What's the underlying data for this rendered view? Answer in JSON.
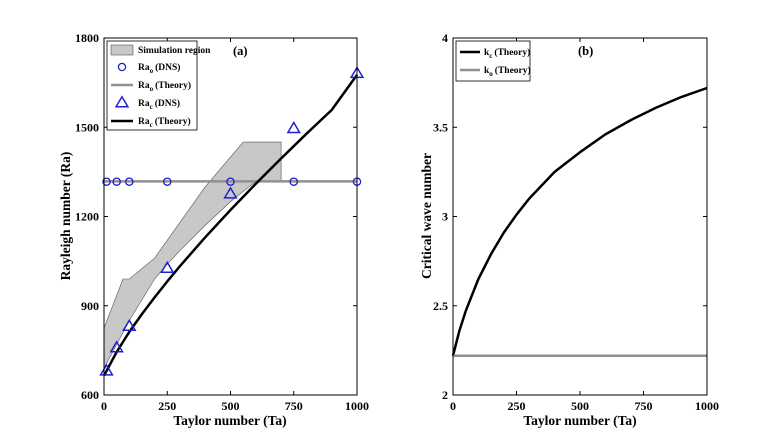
{
  "chart_data": [
    {
      "panel": "(a)",
      "type": "line",
      "xlabel": "Taylor number (Ta)",
      "ylabel": "Rayleigh number (Ra)",
      "xlim": [
        0,
        1000
      ],
      "ylim": [
        600,
        1800
      ],
      "xticks": [
        "0",
        "250",
        "500",
        "750",
        "1000"
      ],
      "yticks": [
        "600",
        "900",
        "1200",
        "1500",
        "1800"
      ],
      "legend_position": "top-left",
      "grid": false,
      "series": [
        {
          "name": "Simulation region",
          "kind": "area",
          "color": "#c8c8c8",
          "upper": [
            [
              0,
              825
            ],
            [
              75,
              990
            ],
            [
              100,
              990
            ],
            [
              200,
              1060
            ],
            [
              300,
              1180
            ],
            [
              400,
              1300
            ],
            [
              550,
              1450
            ],
            [
              700,
              1450
            ]
          ],
          "lower": [
            [
              700,
              1318
            ],
            [
              600,
              1318
            ],
            [
              500,
              1250
            ],
            [
              400,
              1170
            ],
            [
              300,
              1085
            ],
            [
              250,
              1040
            ],
            [
              200,
              990
            ],
            [
              100,
              850
            ],
            [
              50,
              770
            ],
            [
              0,
              690
            ]
          ]
        },
        {
          "name": "Ra_o (DNS)",
          "kind": "scatter",
          "marker": "circle",
          "color": "#1f1fd0",
          "x": [
            10,
            50,
            100,
            250,
            500,
            750,
            1000
          ],
          "y": [
            1317,
            1317,
            1317,
            1317,
            1317,
            1317,
            1317
          ]
        },
        {
          "name": "Ra_o (Theory)",
          "kind": "line",
          "color": "#909090",
          "x": [
            0,
            1000
          ],
          "y": [
            1318,
            1318
          ]
        },
        {
          "name": "Ra_c (DNS)",
          "kind": "scatter",
          "marker": "triangle",
          "color": "#1f1fd0",
          "x": [
            10,
            50,
            100,
            250,
            500,
            750,
            1000
          ],
          "y": [
            680,
            758,
            830,
            1025,
            1275,
            1495,
            1680
          ]
        },
        {
          "name": "Ra_c (Theory)",
          "kind": "line",
          "color": "#000000",
          "x": [
            0,
            50,
            100,
            150,
            200,
            250,
            300,
            400,
            500,
            600,
            700,
            800,
            900,
            1000
          ],
          "y": [
            665,
            745,
            812,
            872,
            928,
            982,
            1033,
            1130,
            1222,
            1310,
            1395,
            1478,
            1558,
            1676
          ]
        }
      ]
    },
    {
      "panel": "(b)",
      "type": "line",
      "xlabel": "Taylor number (Ta)",
      "ylabel": "Critical wave number",
      "xlim": [
        0,
        1000
      ],
      "ylim": [
        2,
        4
      ],
      "xticks": [
        "0",
        "250",
        "500",
        "750",
        "1000"
      ],
      "yticks": [
        "2",
        "2.5",
        "3",
        "3.5",
        "4"
      ],
      "legend_position": "top-left",
      "grid": false,
      "series": [
        {
          "name": "k_c (Theory)",
          "kind": "line",
          "color": "#000000",
          "x": [
            0,
            25,
            50,
            100,
            150,
            200,
            250,
            300,
            400,
            500,
            600,
            700,
            800,
            900,
            1000
          ],
          "y": [
            2.22,
            2.36,
            2.47,
            2.65,
            2.79,
            2.91,
            3.01,
            3.1,
            3.25,
            3.36,
            3.46,
            3.54,
            3.61,
            3.67,
            3.72
          ]
        },
        {
          "name": "k_o (Theory)",
          "kind": "line",
          "color": "#909090",
          "x": [
            0,
            1000
          ],
          "y": [
            2.22,
            2.22
          ]
        }
      ]
    }
  ],
  "legend_a": [
    {
      "main": "Simulation region",
      "sub": "",
      "tail": ""
    },
    {
      "main": "Ra",
      "sub": "o",
      "tail": "(DNS)"
    },
    {
      "main": "Ra",
      "sub": "o",
      "tail": "(Theory)"
    },
    {
      "main": "Ra",
      "sub": "c",
      "tail": "(DNS)"
    },
    {
      "main": "Ra",
      "sub": "c",
      "tail": "(Theory)"
    }
  ],
  "legend_b": [
    {
      "main": "k",
      "sub": "c",
      "tail": "(Theory)"
    },
    {
      "main": "k",
      "sub": "o",
      "tail": "(Theory)"
    }
  ]
}
